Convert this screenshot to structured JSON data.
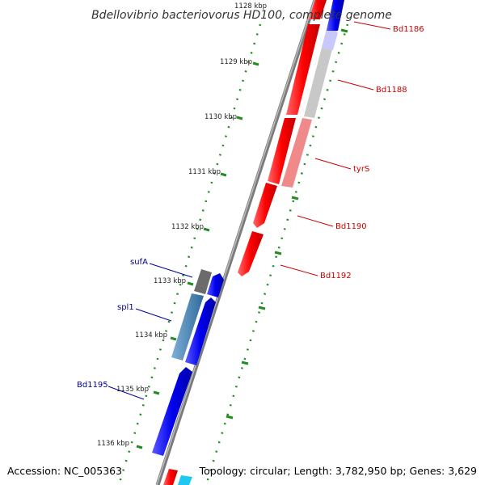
{
  "title": "Bdellovibrio bacteriovorus HD100, complete genome",
  "footer": {
    "accession": "Accession: NC_005363",
    "topology": "Topology: circular; Length: 3,782,950 bp; Genes: 3,629"
  },
  "colors": {
    "forward_strand": "#ff0000",
    "forward_light": "#f08080",
    "reverse_strand": "#0000ee",
    "reverse_light": "#4682b4",
    "forward_label": "#cc0000",
    "reverse_label": "#000099",
    "tick_green": "#228b22",
    "backbone": "#888888"
  },
  "kbp_ticks": [
    {
      "label": "1128 kbp"
    },
    {
      "label": "1129 kbp"
    },
    {
      "label": "1130 kbp"
    },
    {
      "label": "1131 kbp"
    },
    {
      "label": "1132 kbp"
    },
    {
      "label": "1133 kbp"
    },
    {
      "label": "1134 kbp"
    },
    {
      "label": "1135 kbp"
    },
    {
      "label": "1136 kbp"
    }
  ],
  "labels_forward": [
    {
      "name": "Bd1186"
    },
    {
      "name": "Bd1188"
    },
    {
      "name": "tyrS"
    },
    {
      "name": "Bd1190"
    },
    {
      "name": "Bd1192"
    }
  ],
  "labels_reverse": [
    {
      "name": "sufA"
    },
    {
      "name": "spl1"
    },
    {
      "name": "Bd1195"
    }
  ]
}
